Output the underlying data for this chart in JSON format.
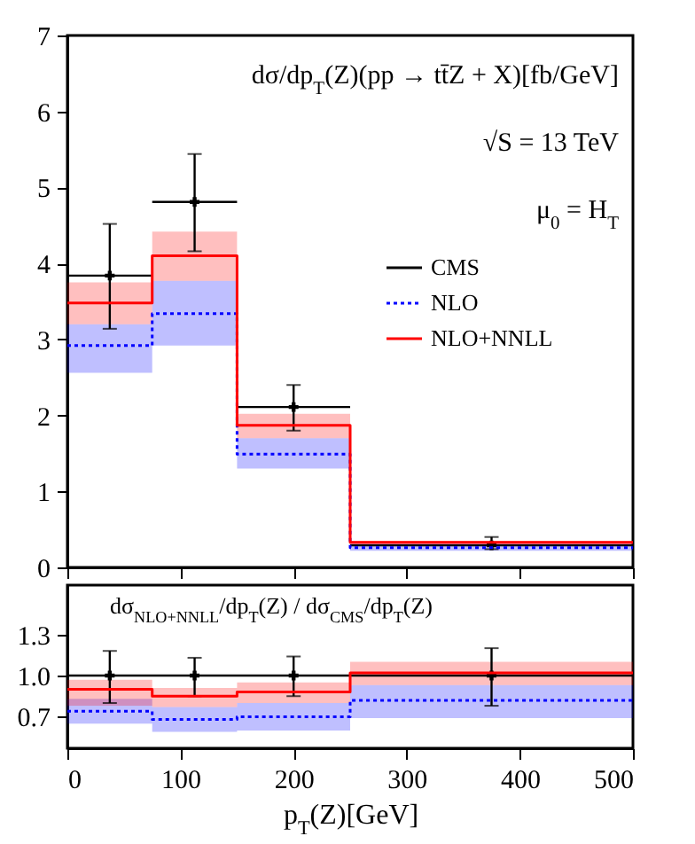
{
  "chart_data": [
    {
      "type": "step",
      "annotations": [
        "dσ/dp$_{T}$(Z)(pp → tt̄Z + X)[fb/GeV]",
        "√S = 13 TeV",
        "μ$_{0}$ = H$_{T}$"
      ],
      "xlim": [
        0,
        500
      ],
      "xticks": [
        0,
        100,
        200,
        300,
        400,
        500
      ],
      "ylim": [
        0,
        7
      ],
      "yticks": [
        0,
        1,
        2,
        3,
        4,
        5,
        6,
        7
      ],
      "tick_labels": "y",
      "legend": "right",
      "series": [
        {
          "name": "CMS",
          "type": "scatter",
          "marker": "cross",
          "color": "#000000",
          "x": [
            37.5,
            112.5,
            200,
            375
          ],
          "values": [
            3.84,
            4.81,
            2.11,
            0.29
          ],
          "errors": [
            [
              3.14,
              4.52
            ],
            [
              4.16,
              5.44
            ],
            [
              1.8,
              2.4
            ],
            [
              0.24,
              0.4
            ]
          ],
          "xerrors": [
            37.5,
            37.5,
            50,
            125
          ]
        },
        {
          "name": "NLO",
          "color": "#0000ff",
          "line_style": "dotted",
          "x": [
            0,
            75,
            150,
            250,
            500
          ],
          "values": [
            2.92,
            3.34,
            1.49,
            0.26,
            0.26
          ],
          "lower": [
            2.56,
            2.92,
            1.3,
            0.22,
            0.22
          ],
          "upper": [
            3.2,
            3.77,
            1.7,
            0.31,
            0.31
          ]
        },
        {
          "name": "NLO+NNLL",
          "color": "#ff0000",
          "x": [
            0,
            75,
            150,
            250,
            500
          ],
          "values": [
            3.48,
            4.1,
            1.87,
            0.33,
            0.33
          ],
          "lower": [
            3.2,
            3.77,
            1.7,
            0.28,
            0.28
          ],
          "upper": [
            3.75,
            4.42,
            2.02,
            0.35,
            0.35
          ]
        }
      ]
    },
    {
      "type": "step",
      "annotations": [
        "dσ$_{NLO+NNLL}$/dp$_{T}$(Z) / dσ$_{CMS}$/dp$_{T}$(Z)"
      ],
      "xlabel": "p$_{T}$(Z)[GeV]",
      "xlim": [
        0,
        500
      ],
      "xticks": [
        0,
        100,
        200,
        300,
        400,
        500
      ],
      "ylim": [
        0.47,
        1.66
      ],
      "yticks": [
        {
          "value": 0.7,
          "label": "0.7"
        },
        {
          "value": 1,
          "label": "1.0"
        },
        {
          "value": 1.3,
          "label": "1.3"
        }
      ],
      "ref_lines": [
        {
          "axis": "y",
          "value": 1,
          "color": "#000000"
        }
      ],
      "series": [
        {
          "type": "scatter",
          "marker": "cross",
          "color": "#000000",
          "x": [
            37.5,
            112.5,
            200,
            375
          ],
          "values": [
            1,
            1,
            1,
            1
          ],
          "errors": [
            [
              0.8,
              1.18
            ],
            [
              0.85,
              1.13
            ],
            [
              0.85,
              1.14
            ],
            [
              0.78,
              1.2
            ]
          ]
        },
        {
          "color": "#0000ff",
          "line_style": "dotted",
          "x": [
            0,
            75,
            150,
            250,
            500
          ],
          "values": [
            0.74,
            0.68,
            0.7,
            0.82,
            0.82
          ],
          "lower": [
            0.65,
            0.59,
            0.6,
            0.69,
            0.69
          ],
          "upper": [
            0.83,
            0.77,
            0.8,
            0.93,
            0.93
          ]
        },
        {
          "color": "#ff0000",
          "x": [
            0,
            75,
            150,
            250,
            500
          ],
          "values": [
            0.9,
            0.85,
            0.88,
            1.02,
            1.02
          ],
          "lower": [
            0.78,
            0.77,
            0.8,
            0.93,
            0.93
          ],
          "upper": [
            0.97,
            0.91,
            0.95,
            1.1,
            1.1
          ]
        }
      ]
    }
  ]
}
